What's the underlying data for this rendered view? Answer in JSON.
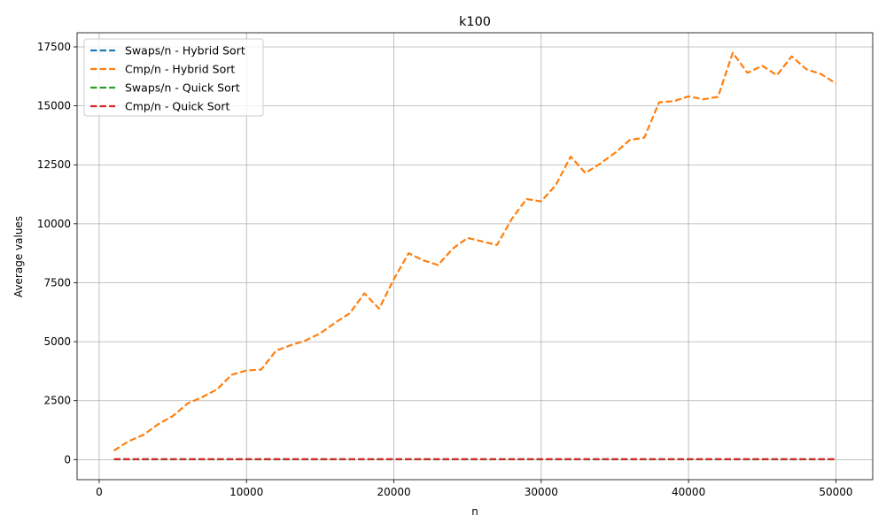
{
  "chart_data": {
    "type": "line",
    "title": "k100",
    "xlabel": "n",
    "ylabel": "Average values",
    "xlim": [
      -1500,
      52500
    ],
    "ylim": [
      -850,
      18100
    ],
    "xticks": [
      0,
      10000,
      20000,
      30000,
      40000,
      50000
    ],
    "yticks": [
      0,
      2500,
      5000,
      7500,
      10000,
      12500,
      15000,
      17500
    ],
    "xtick_labels": [
      "0",
      "10000",
      "20000",
      "30000",
      "40000",
      "50000"
    ],
    "ytick_labels": [
      "0",
      "2500",
      "5000",
      "7500",
      "10000",
      "12500",
      "15000",
      "17500"
    ],
    "grid": true,
    "legend_position": "top-left",
    "x": [
      1000,
      2000,
      3000,
      4000,
      5000,
      6000,
      7000,
      8000,
      9000,
      10000,
      11000,
      12000,
      13000,
      14000,
      15000,
      16000,
      17000,
      18000,
      19000,
      20000,
      21000,
      22000,
      23000,
      24000,
      25000,
      26000,
      27000,
      28000,
      29000,
      30000,
      31000,
      32000,
      33000,
      34000,
      35000,
      36000,
      37000,
      38000,
      39000,
      40000,
      41000,
      42000,
      43000,
      44000,
      45000,
      46000,
      47000,
      48000,
      49000,
      50000
    ],
    "series": [
      {
        "name": "Swaps/n - Hybrid Sort",
        "color": "#1f77b4",
        "values": [
          15,
          15,
          15,
          15,
          15,
          15,
          15,
          15,
          15,
          15,
          15,
          15,
          15,
          15,
          15,
          15,
          15,
          15,
          15,
          15,
          15,
          15,
          15,
          15,
          15,
          15,
          15,
          15,
          15,
          15,
          15,
          15,
          15,
          15,
          15,
          15,
          15,
          15,
          15,
          15,
          15,
          15,
          15,
          15,
          15,
          15,
          15,
          15,
          15,
          15
        ]
      },
      {
        "name": "Cmp/n - Hybrid Sort",
        "color": "#ff7f0e",
        "values": [
          380,
          780,
          1050,
          1500,
          1850,
          2380,
          2650,
          2980,
          3600,
          3780,
          3820,
          4620,
          4850,
          5050,
          5350,
          5800,
          6200,
          7050,
          6400,
          7650,
          8750,
          8450,
          8250,
          8950,
          9400,
          9250,
          9100,
          10200,
          11050,
          10950,
          11650,
          12850,
          12150,
          12550,
          13000,
          13550,
          13650,
          15150,
          15200,
          15400,
          15280,
          15380,
          17250,
          16400,
          16700,
          16300,
          17100,
          16550,
          16350,
          15950
        ]
      },
      {
        "name": "Swaps/n - Quick Sort",
        "color": "#2ca02c",
        "values": [
          10,
          10,
          10,
          10,
          10,
          10,
          10,
          10,
          10,
          10,
          10,
          10,
          10,
          10,
          10,
          10,
          10,
          10,
          10,
          10,
          10,
          10,
          10,
          10,
          10,
          10,
          10,
          10,
          10,
          10,
          10,
          10,
          10,
          10,
          10,
          10,
          10,
          10,
          10,
          10,
          10,
          10,
          10,
          10,
          10,
          10,
          10,
          10,
          10,
          10
        ]
      },
      {
        "name": "Cmp/n - Quick Sort",
        "color": "#d62728",
        "values": [
          20,
          20,
          20,
          20,
          20,
          20,
          20,
          20,
          20,
          20,
          20,
          20,
          20,
          20,
          20,
          20,
          20,
          20,
          20,
          20,
          20,
          20,
          20,
          20,
          20,
          20,
          20,
          20,
          20,
          20,
          20,
          20,
          20,
          20,
          20,
          20,
          20,
          20,
          20,
          20,
          20,
          20,
          20,
          20,
          20,
          20,
          20,
          20,
          20,
          20
        ]
      }
    ]
  }
}
